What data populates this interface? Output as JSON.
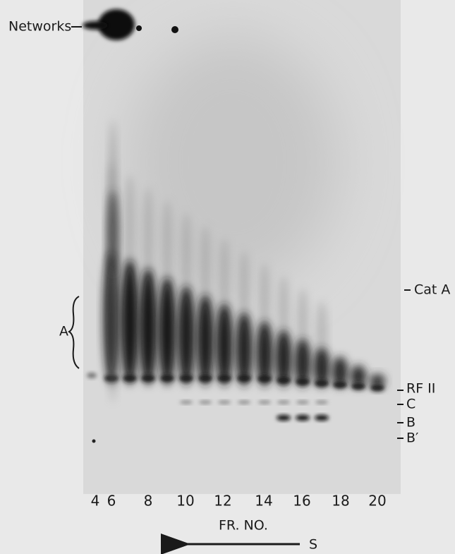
{
  "labels": {
    "networks": "Networks",
    "region": "A",
    "cat_a": "Cat A",
    "rf2": "RF II",
    "c": "C",
    "b": "B",
    "b_prime": "B′"
  },
  "lanes": [
    "4",
    "6",
    "8",
    "10",
    "12",
    "14",
    "16",
    "18",
    "20"
  ],
  "axis_title": "FR. NO.",
  "arrow_label": "S"
}
